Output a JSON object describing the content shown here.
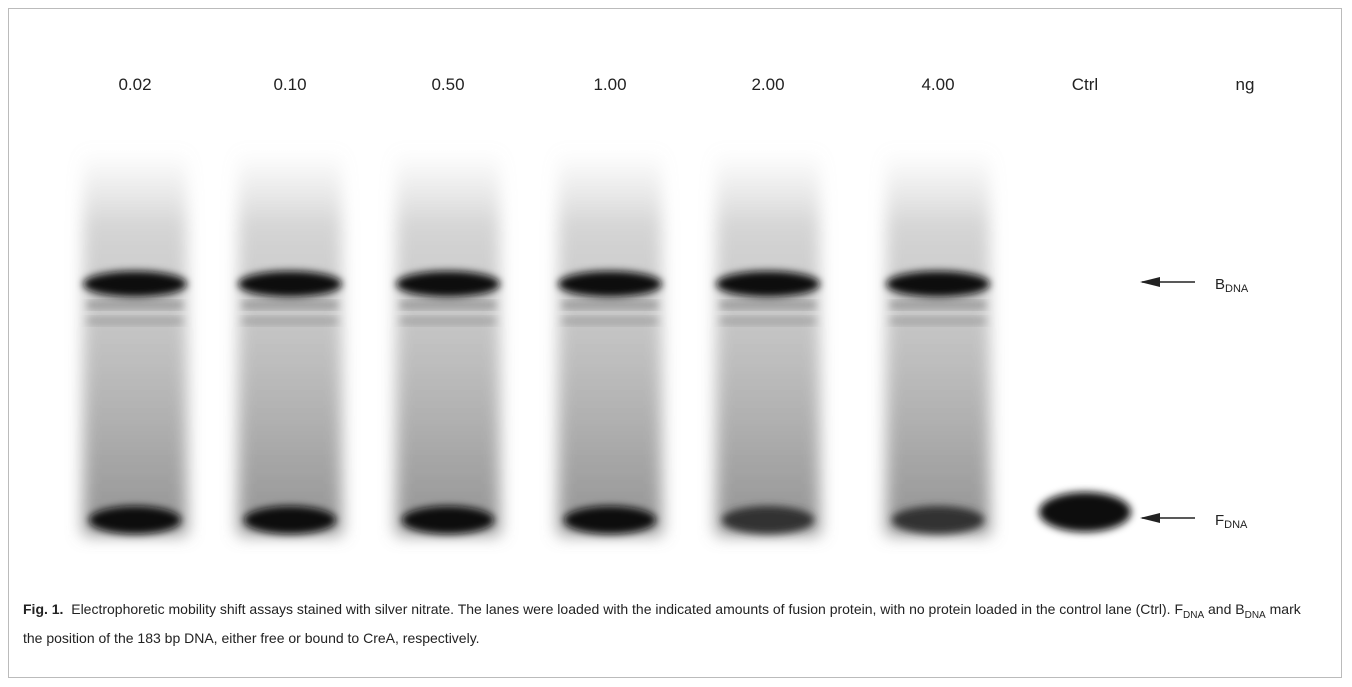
{
  "figure": {
    "lane_labels": [
      "0.02",
      "0.10",
      "0.50",
      "1.00",
      "2.00",
      "4.00",
      "Ctrl"
    ],
    "unit": "ng",
    "markers": [
      {
        "main": "B",
        "sub": "DNA"
      },
      {
        "main": "F",
        "sub": "DNA"
      }
    ]
  },
  "caption": {
    "label": "Fig. 1.",
    "parts": [
      "Electrophoretic mobility shift assays stained with silver nitrate. The lanes were loaded with the indicated amounts of fusion protein, with no protein loaded in the control lane (Ctrl). F",
      "DNA",
      " and B",
      "DNA",
      " mark the position of the 183 bp DNA, either free or bound to CreA, respectively."
    ]
  }
}
